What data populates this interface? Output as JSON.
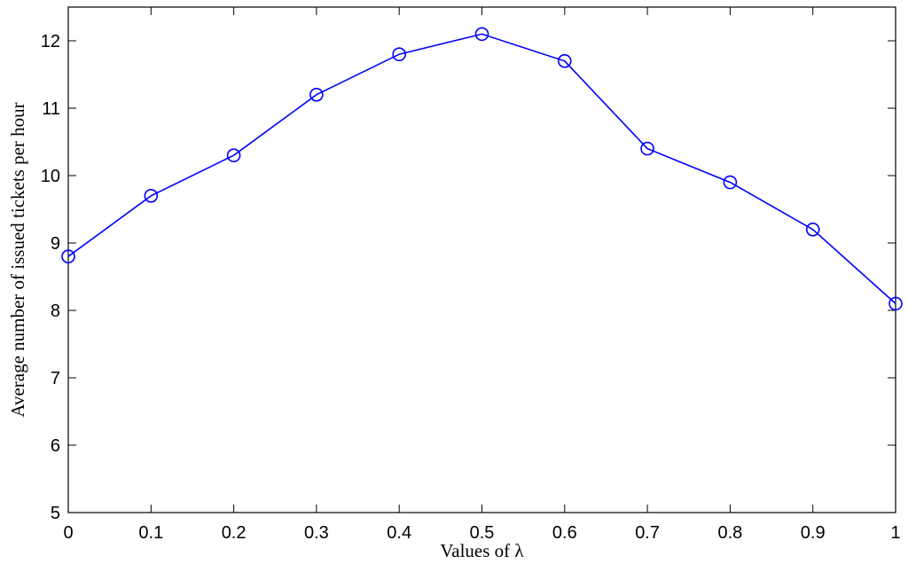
{
  "chart_data": {
    "type": "line",
    "title": "",
    "xlabel": "Values of λ",
    "ylabel": "Average number of issued tickets per hour",
    "xlim": [
      0,
      1
    ],
    "ylim": [
      5,
      12.5
    ],
    "xticks": [
      "0",
      "0.1",
      "0.2",
      "0.3",
      "0.4",
      "0.5",
      "0.6",
      "0.7",
      "0.8",
      "0.9",
      "1"
    ],
    "yticks": [
      "5",
      "6",
      "7",
      "8",
      "9",
      "10",
      "11",
      "12"
    ],
    "grid": false,
    "legend": "none",
    "series": [
      {
        "color": "#0000ff",
        "marker": "circle",
        "x": [
          0,
          0.1,
          0.2,
          0.3,
          0.4,
          0.5,
          0.6,
          0.7,
          0.8,
          0.9,
          1
        ],
        "y": [
          8.8,
          9.7,
          10.3,
          11.2,
          11.8,
          12.1,
          11.7,
          10.4,
          9.9,
          9.2,
          8.1
        ]
      }
    ]
  }
}
